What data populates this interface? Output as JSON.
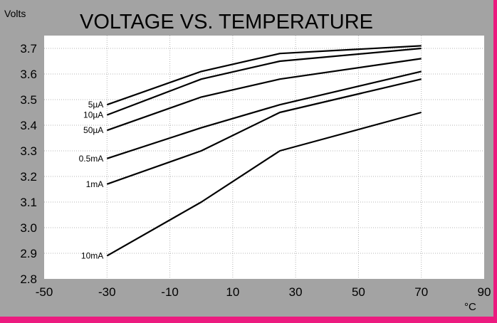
{
  "chart_data": {
    "type": "line",
    "title": "VOLTAGE VS. TEMPERATURE",
    "ylabel": "Volts",
    "xlabel": "°C",
    "xlim": [
      -50,
      90
    ],
    "ylim": [
      2.8,
      3.75
    ],
    "xticks": [
      "-50",
      "-30",
      "-10",
      "10",
      "30",
      "50",
      "70",
      "90"
    ],
    "xtick_values": [
      -50,
      -30,
      -10,
      10,
      30,
      50,
      70,
      90
    ],
    "yticks": [
      "2.8",
      "2.9",
      "3.0",
      "3.1",
      "3.2",
      "3.3",
      "3.4",
      "3.5",
      "3.6",
      "3.7"
    ],
    "ytick_values": [
      2.8,
      2.9,
      3.0,
      3.1,
      3.2,
      3.3,
      3.4,
      3.5,
      3.6,
      3.7
    ],
    "grid": true,
    "colors": {
      "frame": "#ec1a7f",
      "panel": "#a3a3a3",
      "plot": "#ffffff",
      "line": "#000000",
      "grid": "#b4b4b4"
    },
    "series": [
      {
        "name": "5µA",
        "x": [
          -30,
          0,
          25,
          70
        ],
        "y": [
          3.48,
          3.61,
          3.68,
          3.71
        ]
      },
      {
        "name": "10µA",
        "x": [
          -30,
          0,
          25,
          70
        ],
        "y": [
          3.44,
          3.58,
          3.65,
          3.7
        ]
      },
      {
        "name": "50µA",
        "x": [
          -30,
          0,
          25,
          70
        ],
        "y": [
          3.38,
          3.51,
          3.58,
          3.66
        ]
      },
      {
        "name": "0.5mA",
        "x": [
          -30,
          0,
          25,
          70
        ],
        "y": [
          3.27,
          3.39,
          3.48,
          3.61
        ]
      },
      {
        "name": "1mA",
        "x": [
          -30,
          0,
          25,
          70
        ],
        "y": [
          3.17,
          3.3,
          3.45,
          3.58
        ]
      },
      {
        "name": "10mA",
        "x": [
          -30,
          0,
          25,
          70
        ],
        "y": [
          2.89,
          3.1,
          3.3,
          3.45
        ]
      }
    ]
  }
}
